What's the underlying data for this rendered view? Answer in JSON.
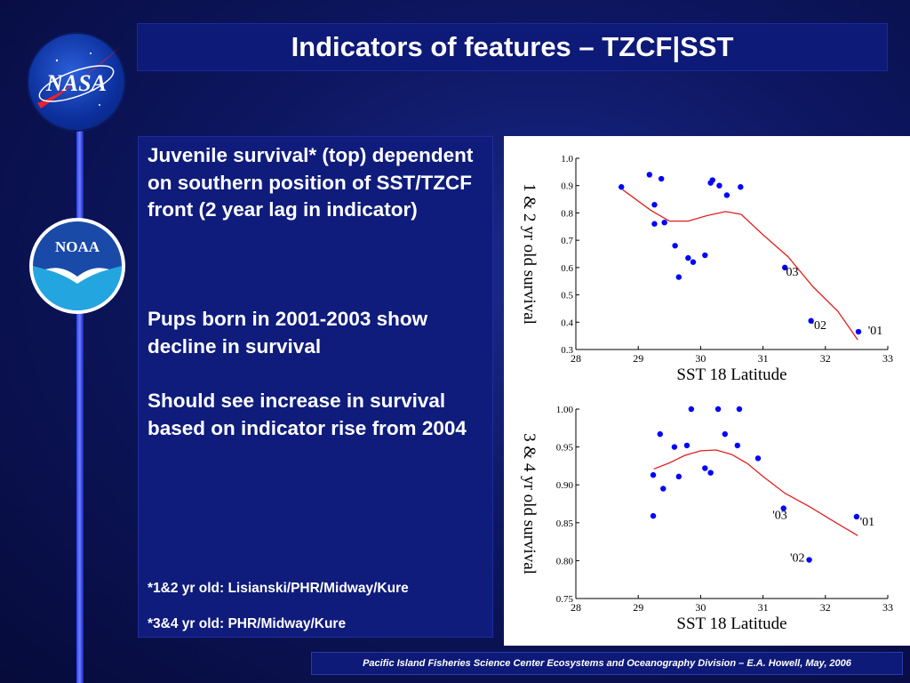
{
  "title": "Indicators of features – TZCF|SST",
  "logos": {
    "nasa": "NASA",
    "noaa": "NOAA"
  },
  "text_panel": {
    "paragraphs": [
      "Juvenile survival* (top) dependent on southern position of SST/TZCF front (2 year lag in indicator)",
      "Pups born in 2001-2003 show decline in survival",
      "Should see increase in survival based on indicator rise from 2004"
    ],
    "footnotes": [
      "*1&2 yr old: Lisianski/PHR/Midway/Kure",
      "*3&4 yr old: PHR/Midway/Kure"
    ]
  },
  "footer": "Pacific Island Fisheries Science Center Ecosystems and Oceanography Division – E.A. Howell, May, 2006",
  "colors": {
    "point": "#0000ff",
    "line": "#e02020",
    "background": "#0d1660",
    "panel": "#0f1c7c"
  },
  "chart_data": [
    {
      "type": "scatter",
      "xlabel": "SST 18 Latitude",
      "ylabel": "1 & 2 yr old survival",
      "xlim": [
        28,
        33
      ],
      "ylim": [
        0.3,
        1.0
      ],
      "xticks": [
        "28",
        "29",
        "30",
        "31",
        "32",
        "33"
      ],
      "yticks": [
        "0.3",
        "0.4",
        "0.5",
        "0.6",
        "0.7",
        "0.8",
        "0.9",
        "1.0"
      ],
      "points": [
        {
          "x": 28.73,
          "y": 0.895
        },
        {
          "x": 29.18,
          "y": 0.94
        },
        {
          "x": 29.37,
          "y": 0.925
        },
        {
          "x": 29.26,
          "y": 0.83
        },
        {
          "x": 29.26,
          "y": 0.76
        },
        {
          "x": 29.42,
          "y": 0.765
        },
        {
          "x": 29.59,
          "y": 0.68
        },
        {
          "x": 29.65,
          "y": 0.565
        },
        {
          "x": 29.8,
          "y": 0.635
        },
        {
          "x": 29.88,
          "y": 0.62
        },
        {
          "x": 30.07,
          "y": 0.645
        },
        {
          "x": 30.16,
          "y": 0.91
        },
        {
          "x": 30.19,
          "y": 0.92
        },
        {
          "x": 30.3,
          "y": 0.9
        },
        {
          "x": 30.42,
          "y": 0.865
        },
        {
          "x": 30.64,
          "y": 0.895
        },
        {
          "x": 31.35,
          "y": 0.6
        },
        {
          "x": 31.77,
          "y": 0.405
        },
        {
          "x": 32.53,
          "y": 0.365
        }
      ],
      "point_labels": [
        {
          "text": "'03",
          "x": 31.45,
          "y": 0.57
        },
        {
          "text": "'02",
          "x": 31.9,
          "y": 0.375
        },
        {
          "text": "'01",
          "x": 32.8,
          "y": 0.355
        }
      ],
      "fit_line": [
        {
          "x": 28.75,
          "y": 0.885
        },
        {
          "x": 29.2,
          "y": 0.81
        },
        {
          "x": 29.5,
          "y": 0.77
        },
        {
          "x": 29.8,
          "y": 0.77
        },
        {
          "x": 30.1,
          "y": 0.79
        },
        {
          "x": 30.4,
          "y": 0.805
        },
        {
          "x": 30.65,
          "y": 0.795
        },
        {
          "x": 31.0,
          "y": 0.72
        },
        {
          "x": 31.4,
          "y": 0.64
        },
        {
          "x": 31.8,
          "y": 0.53
        },
        {
          "x": 32.2,
          "y": 0.44
        },
        {
          "x": 32.52,
          "y": 0.335
        }
      ]
    },
    {
      "type": "scatter",
      "xlabel": "SST 18 Latitude",
      "ylabel": "3 & 4 yr old survival",
      "xlim": [
        28,
        33
      ],
      "ylim": [
        0.75,
        1.0
      ],
      "xticks": [
        "28",
        "29",
        "30",
        "31",
        "32",
        "33"
      ],
      "yticks": [
        "0.75",
        "0.80",
        "0.85",
        "0.90",
        "0.95",
        "1.00"
      ],
      "points": [
        {
          "x": 29.24,
          "y": 0.913
        },
        {
          "x": 29.24,
          "y": 0.859
        },
        {
          "x": 29.35,
          "y": 0.967
        },
        {
          "x": 29.4,
          "y": 0.895
        },
        {
          "x": 29.58,
          "y": 0.95
        },
        {
          "x": 29.65,
          "y": 0.911
        },
        {
          "x": 29.78,
          "y": 0.952
        },
        {
          "x": 29.85,
          "y": 1.0
        },
        {
          "x": 30.07,
          "y": 0.922
        },
        {
          "x": 30.16,
          "y": 0.916
        },
        {
          "x": 30.28,
          "y": 1.0
        },
        {
          "x": 30.39,
          "y": 0.967
        },
        {
          "x": 30.59,
          "y": 0.952
        },
        {
          "x": 30.62,
          "y": 1.0
        },
        {
          "x": 30.92,
          "y": 0.935
        },
        {
          "x": 31.33,
          "y": 0.869
        },
        {
          "x": 31.74,
          "y": 0.801
        },
        {
          "x": 32.5,
          "y": 0.858
        }
      ],
      "point_labels": [
        {
          "text": "'03",
          "x": 31.27,
          "y": 0.855
        },
        {
          "text": "'02",
          "x": 31.55,
          "y": 0.799
        },
        {
          "text": "'01",
          "x": 32.67,
          "y": 0.846
        }
      ],
      "fit_line": [
        {
          "x": 29.25,
          "y": 0.921
        },
        {
          "x": 29.5,
          "y": 0.929
        },
        {
          "x": 29.75,
          "y": 0.939
        },
        {
          "x": 30.0,
          "y": 0.945
        },
        {
          "x": 30.25,
          "y": 0.946
        },
        {
          "x": 30.5,
          "y": 0.94
        },
        {
          "x": 30.75,
          "y": 0.928
        },
        {
          "x": 31.0,
          "y": 0.911
        },
        {
          "x": 31.35,
          "y": 0.889
        },
        {
          "x": 31.75,
          "y": 0.871
        },
        {
          "x": 32.15,
          "y": 0.851
        },
        {
          "x": 32.52,
          "y": 0.833
        }
      ]
    }
  ]
}
